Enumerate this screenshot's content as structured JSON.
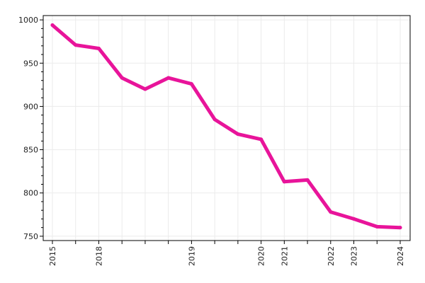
{
  "chart_data": {
    "type": "line",
    "title": "",
    "xlabel": "",
    "ylabel": "",
    "ylim": [
      745,
      1005
    ],
    "y_ticks": [
      750,
      800,
      850,
      900,
      950,
      1000
    ],
    "x_ticks": [
      {
        "pos": 0,
        "label": "2015"
      },
      {
        "pos": 1,
        "label": ""
      },
      {
        "pos": 2,
        "label": "2018"
      },
      {
        "pos": 3,
        "label": ""
      },
      {
        "pos": 4,
        "label": ""
      },
      {
        "pos": 5,
        "label": ""
      },
      {
        "pos": 6,
        "label": "2019"
      },
      {
        "pos": 7,
        "label": ""
      },
      {
        "pos": 8,
        "label": ""
      },
      {
        "pos": 9,
        "label": "2020"
      },
      {
        "pos": 10,
        "label": "2021"
      },
      {
        "pos": 11,
        "label": ""
      },
      {
        "pos": 12,
        "label": "2022"
      },
      {
        "pos": 13,
        "label": "2023"
      },
      {
        "pos": 14,
        "label": ""
      },
      {
        "pos": 15,
        "label": "2024"
      }
    ],
    "grid": true,
    "series": [
      {
        "color": "#e8149a",
        "values": [
          {
            "x": 0,
            "y": 994
          },
          {
            "x": 1,
            "y": 971
          },
          {
            "x": 2,
            "y": 967
          },
          {
            "x": 3,
            "y": 933
          },
          {
            "x": 4,
            "y": 920
          },
          {
            "x": 5,
            "y": 933
          },
          {
            "x": 6,
            "y": 926
          },
          {
            "x": 7,
            "y": 885
          },
          {
            "x": 8,
            "y": 868
          },
          {
            "x": 9,
            "y": 862
          },
          {
            "x": 10,
            "y": 813
          },
          {
            "x": 11,
            "y": 815
          },
          {
            "x": 12,
            "y": 778
          },
          {
            "x": 13,
            "y": 770
          },
          {
            "x": 14,
            "y": 761
          },
          {
            "x": 15,
            "y": 760
          }
        ]
      }
    ]
  }
}
